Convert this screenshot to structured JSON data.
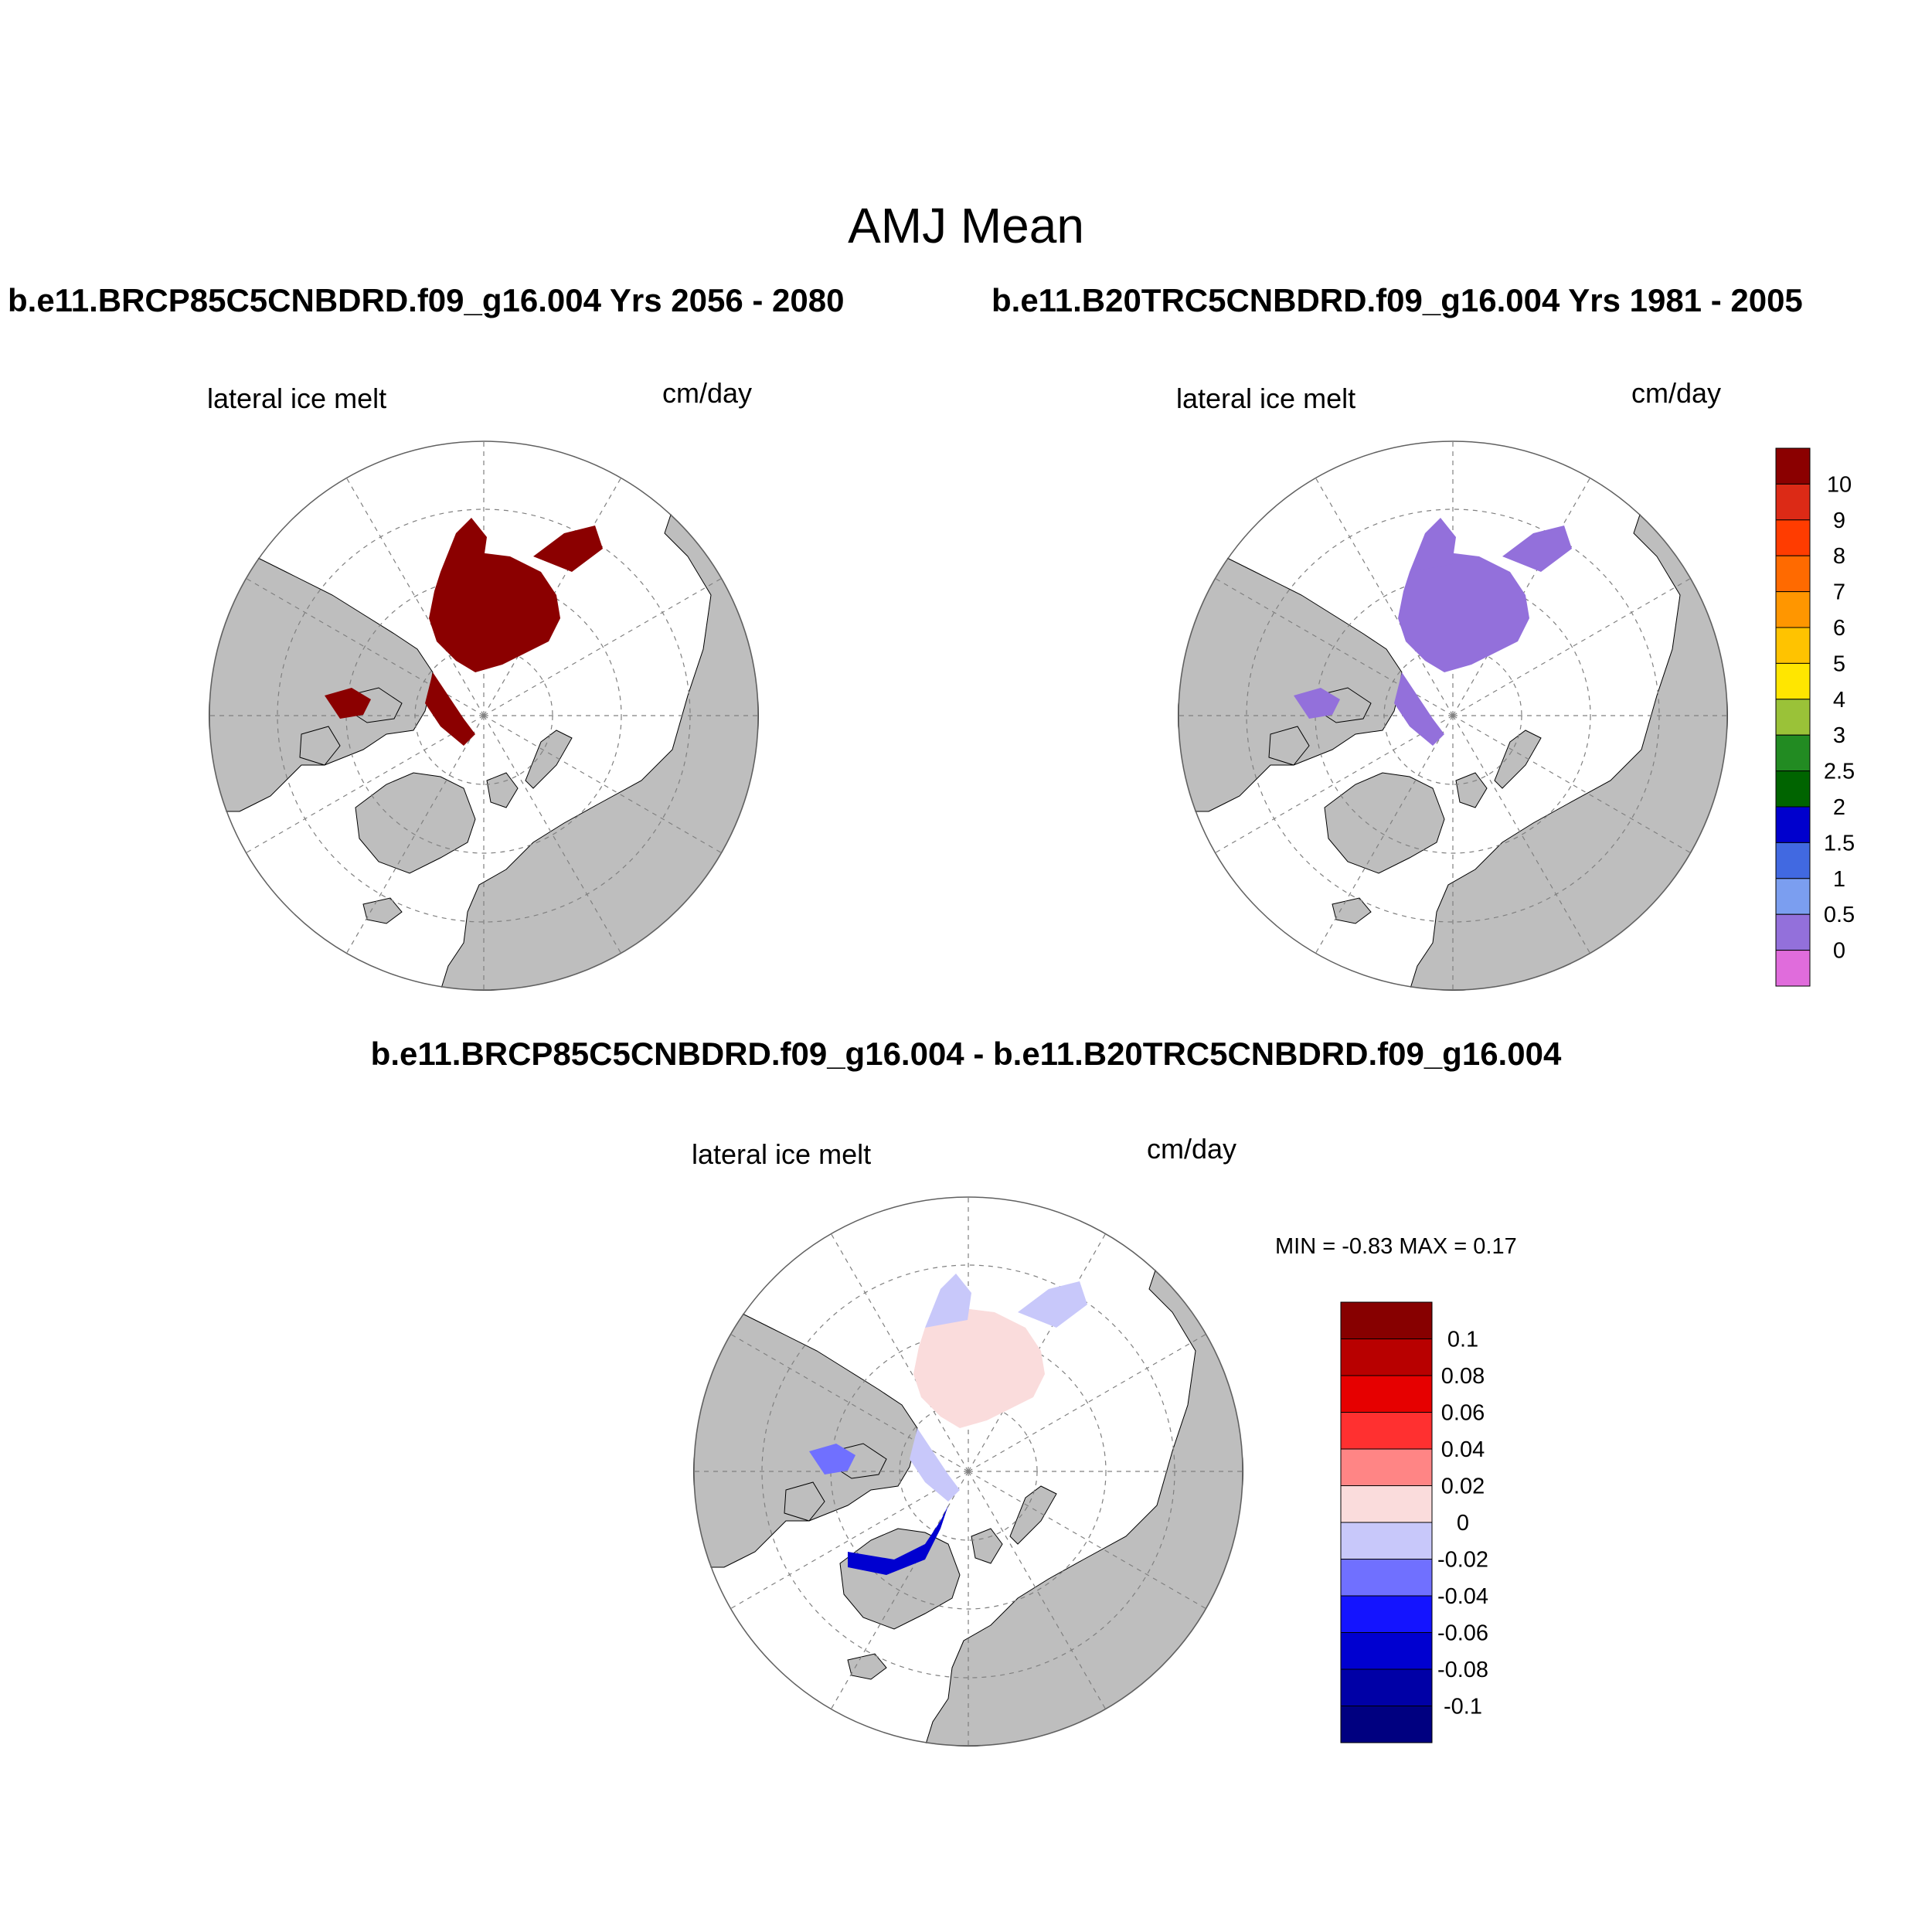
{
  "figure": {
    "title": "AMJ Mean",
    "diff_title": "b.e11.BRCP85C5CNBDRD.f09_g16.004 - b.e11.B20TRC5CNBDRD.f09_g16.004",
    "minmax": "MIN =  -0.83 MAX =   0.17"
  },
  "panels": [
    {
      "id": "future",
      "header": "b.e11.BRCP85C5CNBDRD.f09_g16.004  Yrs 2056 - 2080",
      "variable": "lateral ice melt",
      "units": "cm/day",
      "fill_color": "#8b0000",
      "fill_level": "10+"
    },
    {
      "id": "historical",
      "header": "b.e11.B20TRC5CNBDRD.f09_g16.004  Yrs 1981 - 2005",
      "variable": "lateral ice melt",
      "units": "cm/day",
      "fill_color": "#9370db",
      "fill_level": "0 - 0.5"
    },
    {
      "id": "difference",
      "variable": "lateral ice melt",
      "units": "cm/day",
      "fill_color": "#fadcdc"
    }
  ],
  "legend_absolute": {
    "labels": [
      "10",
      "9",
      "8",
      "7",
      "6",
      "5",
      "4",
      "3",
      "2.5",
      "2",
      "1.5",
      "1",
      "0.5",
      "0"
    ],
    "colors": [
      "#8b0000",
      "#dc2a16",
      "#ff3c00",
      "#ff6a00",
      "#ff9600",
      "#ffc300",
      "#ffe600",
      "#9ac238",
      "#228b22",
      "#006400",
      "#0000cd",
      "#4169e1",
      "#7b9ef0",
      "#9370db",
      "#e06cdc"
    ]
  },
  "legend_difference": {
    "labels": [
      "0.1",
      "0.08",
      "0.06",
      "0.04",
      "0.02",
      "0",
      "-0.02",
      "-0.04",
      "-0.06",
      "-0.08",
      "-0.1"
    ],
    "colors": [
      "#870000",
      "#b80000",
      "#e60000",
      "#ff3030",
      "#ff8585",
      "#fadcdc",
      "#c8c8fa",
      "#7070ff",
      "#1414ff",
      "#0000d0",
      "#0000a6",
      "#000080"
    ]
  },
  "map_colors": {
    "land": "#bebebe",
    "ocean": "#ffffff",
    "gridline": "#808080"
  }
}
